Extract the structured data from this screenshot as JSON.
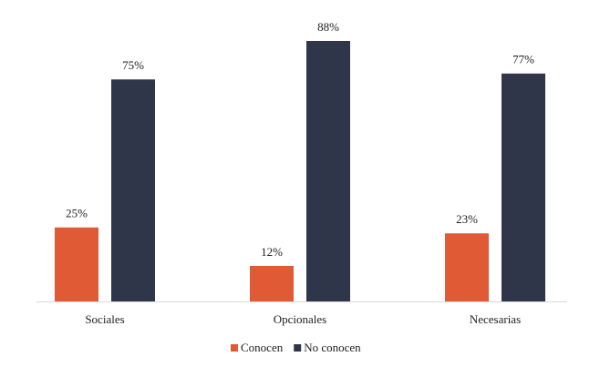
{
  "chart_data": {
    "type": "bar",
    "categories": [
      "Sociales",
      "Opcionales",
      "Necesarias"
    ],
    "series": [
      {
        "name": "Conocen",
        "color": "#e05a36",
        "values": [
          25,
          12,
          23
        ],
        "value_labels": [
          "25%",
          "12%",
          "23%"
        ]
      },
      {
        "name": "No conocen",
        "color": "#30364a",
        "values": [
          75,
          88,
          77
        ],
        "value_labels": [
          "75%",
          "88%",
          "77%"
        ]
      }
    ]
  }
}
